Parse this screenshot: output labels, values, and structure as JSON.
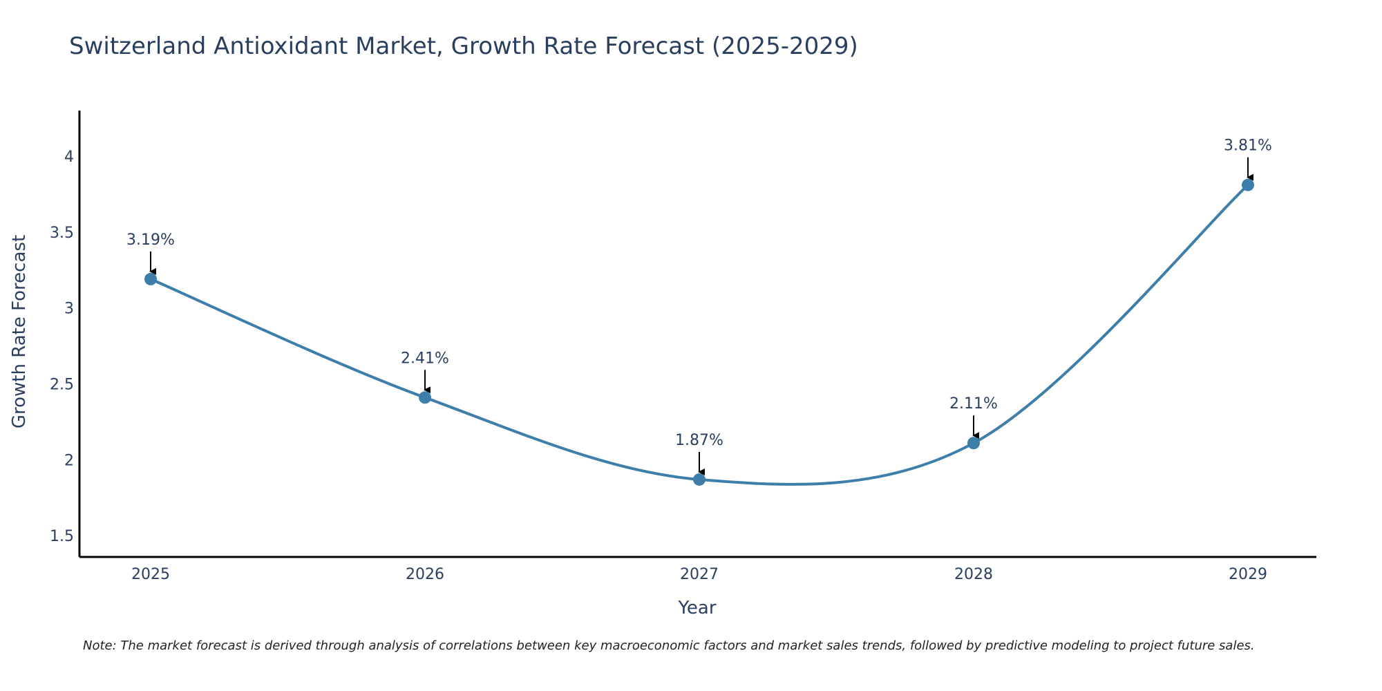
{
  "chart_data": {
    "type": "line",
    "title": "Switzerland Antioxidant Market, Growth Rate Forecast (2025-2029)",
    "xlabel": "Year",
    "ylabel": "Growth Rate Forecast",
    "categories": [
      "2025",
      "2026",
      "2027",
      "2028",
      "2029"
    ],
    "series": [
      {
        "name": "Growth Rate Forecast",
        "values": [
          3.19,
          2.41,
          1.87,
          2.11,
          3.81
        ],
        "labels": [
          "3.19%",
          "2.41%",
          "1.87%",
          "2.11%",
          "3.81%"
        ],
        "color": "#3d7eaa"
      }
    ],
    "ylim": [
      1.36,
      4.3
    ],
    "yticks": [
      1.5,
      2,
      2.5,
      3,
      3.5,
      4
    ],
    "ytick_labels": [
      "1.5",
      "2",
      "2.5",
      "3",
      "3.5",
      "4"
    ],
    "grid": false,
    "line_shape": "spline",
    "annotation_arrows": true,
    "note": "Note: The market forecast is derived through analysis of correlations between key macroeconomic factors and market sales trends, followed by predictive modeling to project future sales."
  },
  "colors": {
    "line": "#3d7eaa",
    "marker": "#3d7eaa",
    "axis": "#000000",
    "text": "#2a3f5f",
    "arrow": "#000000"
  }
}
